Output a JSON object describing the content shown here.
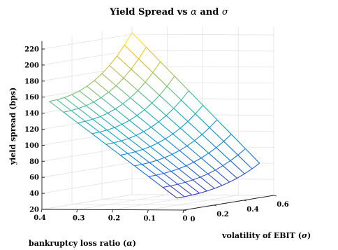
{
  "chart_data": {
    "type": "surface",
    "title": "Yield Spread vs α and σ",
    "title_prefix": "Yield Spread vs ",
    "title_alpha": "α",
    "title_mid": " and ",
    "title_sigma": "σ",
    "xlabel": "volatility of EBIT (σ)",
    "xlabel_text": "volatility of EBIT (",
    "xlabel_sym": "σ",
    "xlabel_close": ")",
    "ylabel": "bankruptcy loss ratio (α)",
    "ylabel_text": "bankruptcy loss ratio (",
    "ylabel_sym": "α",
    "ylabel_close": ")",
    "zlabel": "yield spread (bps)",
    "x_range": [
      0,
      0.6
    ],
    "y_range": [
      0,
      0.4
    ],
    "z_range": [
      20,
      230
    ],
    "x_ticks": [
      0,
      0.2,
      0.4,
      0.6
    ],
    "x_tick_labels": [
      "0",
      "0.2",
      "0.4",
      "0.6"
    ],
    "y_ticks": [
      0,
      0.1,
      0.2,
      0.3,
      0.4
    ],
    "y_tick_labels": [
      "0",
      "0.1",
      "0.2",
      "0.3",
      "0.4"
    ],
    "z_ticks": [
      20,
      40,
      60,
      80,
      100,
      120,
      140,
      160,
      180,
      200,
      220
    ],
    "z_tick_labels": [
      "20",
      "40",
      "60",
      "80",
      "100",
      "120",
      "140",
      "160",
      "180",
      "200",
      "220"
    ],
    "grid": true,
    "colormap": "parula",
    "sigma": [
      0.05,
      0.1,
      0.15,
      0.2,
      0.25,
      0.3,
      0.35,
      0.4,
      0.45,
      0.5,
      0.55,
      0.6
    ],
    "alpha": [
      0.04,
      0.08,
      0.12,
      0.16,
      0.2,
      0.24,
      0.28,
      0.32,
      0.36,
      0.4
    ],
    "spread_range_at_alpha_0_04": [
      20,
      42
    ],
    "spread_range_at_alpha_0_4": [
      153,
      222
    ]
  }
}
